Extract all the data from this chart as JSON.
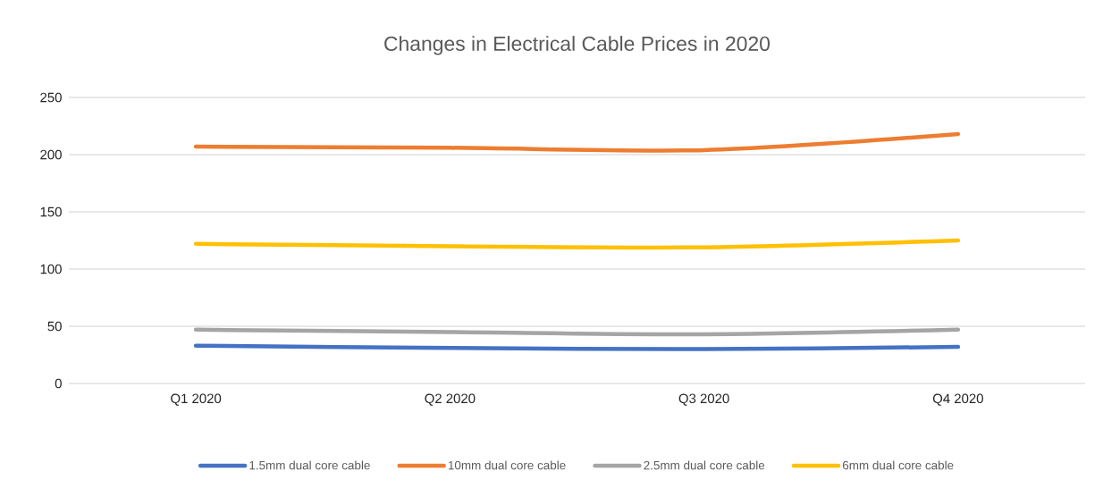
{
  "chart_data": {
    "type": "line",
    "title": "Changes in Electrical Cable Prices in 2020",
    "categories": [
      "Q1 2020",
      "Q2 2020",
      "Q3 2020",
      "Q4 2020"
    ],
    "series": [
      {
        "name": "1.5mm dual core cable",
        "color": "#4472c4",
        "values": [
          33,
          31,
          30,
          32
        ]
      },
      {
        "name": "10mm dual core cable",
        "color": "#ed7d31",
        "values": [
          207,
          206,
          204,
          218
        ]
      },
      {
        "name": "2.5mm dual core cable",
        "color": "#a5a5a5",
        "values": [
          47,
          45,
          43,
          47
        ]
      },
      {
        "name": "6mm dual core cable",
        "color": "#ffc000",
        "values": [
          122,
          120,
          119,
          125
        ]
      }
    ],
    "ylim": [
      0,
      250
    ],
    "yticks": [
      0,
      50,
      100,
      150,
      200,
      250
    ],
    "grid": "y",
    "legend": "bottom",
    "marker": "none",
    "line_style": "solid"
  }
}
